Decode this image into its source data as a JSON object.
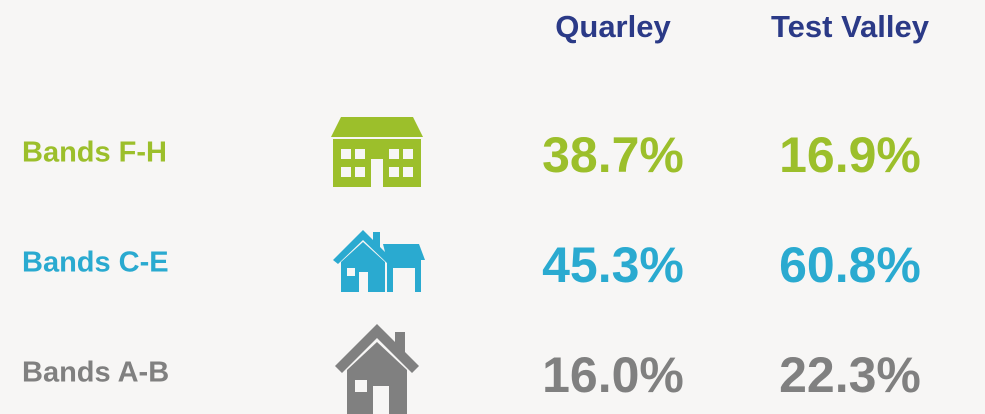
{
  "header": {
    "columns": [
      "Quarley",
      "Test Valley"
    ]
  },
  "rows": [
    {
      "label": "Bands F-H",
      "values": [
        "38.7%",
        "16.9%"
      ],
      "color": "#9cbf2b"
    },
    {
      "label": "Bands C-E",
      "values": [
        "45.3%",
        "60.8%"
      ],
      "color": "#2aaad0"
    },
    {
      "label": "Bands A-B",
      "values": [
        "16.0%",
        "22.3%"
      ],
      "color": "#808080"
    }
  ]
}
